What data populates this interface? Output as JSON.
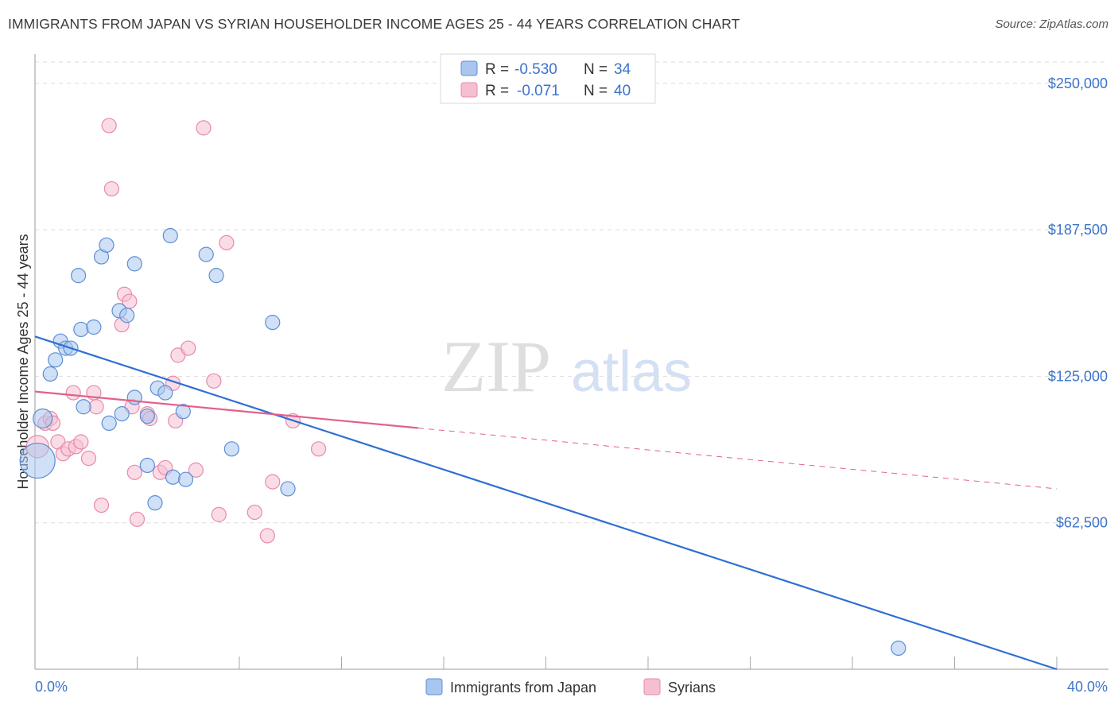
{
  "title": "IMMIGRANTS FROM JAPAN VS SYRIAN HOUSEHOLDER INCOME AGES 25 - 44 YEARS CORRELATION CHART",
  "source": "Source: ZipAtlas.com",
  "watermark": {
    "zip": "ZIP",
    "atlas": "atlas"
  },
  "colors": {
    "japan_fill": "#a9c6ee",
    "japan_stroke": "#5b8fd6",
    "japan_line": "#2f6fd3",
    "syria_fill": "#f6bfd1",
    "syria_stroke": "#e88aa8",
    "syria_line": "#e2608c",
    "tick_text": "#3d74c9",
    "grid": "#dddddd"
  },
  "legend": {
    "rows": [
      {
        "r_label": "R =",
        "r_value": "-0.530",
        "n_label": "N =",
        "n_value": "34"
      },
      {
        "r_label": "R =",
        "r_value": "-0.071",
        "n_label": "N =",
        "n_value": "40"
      }
    ]
  },
  "bottom_legend": [
    "Immigrants from Japan",
    "Syrians"
  ],
  "chart_data": {
    "type": "scatter",
    "xlabel": "",
    "ylabel": "Householder Income Ages 25 - 44 years",
    "xlim": [
      0,
      40
    ],
    "ylim": [
      0,
      262500
    ],
    "x_tick_labels": [
      "0.0%",
      "40.0%"
    ],
    "y_ticks": [
      62500,
      125000,
      187500,
      250000
    ],
    "y_tick_labels": [
      "$62,500",
      "$125,000",
      "$187,500",
      "$250,000"
    ],
    "grid": "horizontal dashed",
    "legend_position": "top-center",
    "series": [
      {
        "name": "Immigrants from Japan",
        "r": -0.53,
        "n": 34,
        "points": [
          [
            0.1,
            89000,
            22
          ],
          [
            0.3,
            107000,
            12
          ],
          [
            0.6,
            126000,
            9
          ],
          [
            0.8,
            132000,
            9
          ],
          [
            1.0,
            140000,
            9
          ],
          [
            1.2,
            137000,
            9
          ],
          [
            1.4,
            137000,
            9
          ],
          [
            1.8,
            145000,
            9
          ],
          [
            2.3,
            146000,
            9
          ],
          [
            1.7,
            168000,
            9
          ],
          [
            2.6,
            176000,
            9
          ],
          [
            2.8,
            181000,
            9
          ],
          [
            1.9,
            112000,
            9
          ],
          [
            2.9,
            105000,
            9
          ],
          [
            3.4,
            109000,
            9
          ],
          [
            3.3,
            153000,
            9
          ],
          [
            3.6,
            151000,
            9
          ],
          [
            3.9,
            173000,
            9
          ],
          [
            3.9,
            116000,
            9
          ],
          [
            4.4,
            108000,
            9
          ],
          [
            4.4,
            87000,
            9
          ],
          [
            4.7,
            71000,
            9
          ],
          [
            4.8,
            120000,
            9
          ],
          [
            5.1,
            118000,
            9
          ],
          [
            5.3,
            185000,
            9
          ],
          [
            5.4,
            82000,
            9
          ],
          [
            5.8,
            110000,
            9
          ],
          [
            5.9,
            81000,
            9
          ],
          [
            6.7,
            177000,
            9
          ],
          [
            7.1,
            168000,
            9
          ],
          [
            7.7,
            94000,
            9
          ],
          [
            9.3,
            148000,
            9
          ],
          [
            9.9,
            77000,
            9
          ],
          [
            33.8,
            9000,
            9
          ]
        ]
      },
      {
        "name": "Syrians",
        "r": -0.071,
        "n": 40,
        "points": [
          [
            0.1,
            95000,
            14
          ],
          [
            0.4,
            105000,
            9
          ],
          [
            0.6,
            107000,
            9
          ],
          [
            0.7,
            105000,
            9
          ],
          [
            0.9,
            97000,
            9
          ],
          [
            1.1,
            92000,
            9
          ],
          [
            1.3,
            94000,
            9
          ],
          [
            1.5,
            118000,
            9
          ],
          [
            1.6,
            95000,
            9
          ],
          [
            1.8,
            97000,
            9
          ],
          [
            2.1,
            90000,
            9
          ],
          [
            2.3,
            118000,
            9
          ],
          [
            2.4,
            112000,
            9
          ],
          [
            2.6,
            70000,
            9
          ],
          [
            2.9,
            232000,
            9
          ],
          [
            3.0,
            205000,
            9
          ],
          [
            3.8,
            112000,
            9
          ],
          [
            3.4,
            147000,
            9
          ],
          [
            3.5,
            160000,
            9
          ],
          [
            3.7,
            157000,
            9
          ],
          [
            3.9,
            84000,
            9
          ],
          [
            4.0,
            64000,
            9
          ],
          [
            4.4,
            109000,
            9
          ],
          [
            4.5,
            107000,
            9
          ],
          [
            4.9,
            84000,
            9
          ],
          [
            5.1,
            86000,
            9
          ],
          [
            5.4,
            122000,
            9
          ],
          [
            5.5,
            106000,
            9
          ],
          [
            5.6,
            134000,
            9
          ],
          [
            6.0,
            137000,
            9
          ],
          [
            6.3,
            85000,
            9
          ],
          [
            6.6,
            231000,
            9
          ],
          [
            7.0,
            123000,
            9
          ],
          [
            7.2,
            66000,
            9
          ],
          [
            7.5,
            182000,
            9
          ],
          [
            8.6,
            67000,
            9
          ],
          [
            9.1,
            57000,
            9
          ],
          [
            9.3,
            80000,
            9
          ],
          [
            10.1,
            106000,
            9
          ],
          [
            11.1,
            94000,
            9
          ]
        ]
      }
    ],
    "trendlines": [
      {
        "series": "Immigrants from Japan",
        "x0": 0,
        "y0": 142000,
        "x1": 40,
        "y1": 0,
        "style": "solid"
      },
      {
        "series": "Syrians",
        "x0": 0,
        "y0": 118500,
        "x_solid_end": 15,
        "x1": 40,
        "y1": 77000,
        "style": "solid-then-dashed"
      }
    ]
  }
}
